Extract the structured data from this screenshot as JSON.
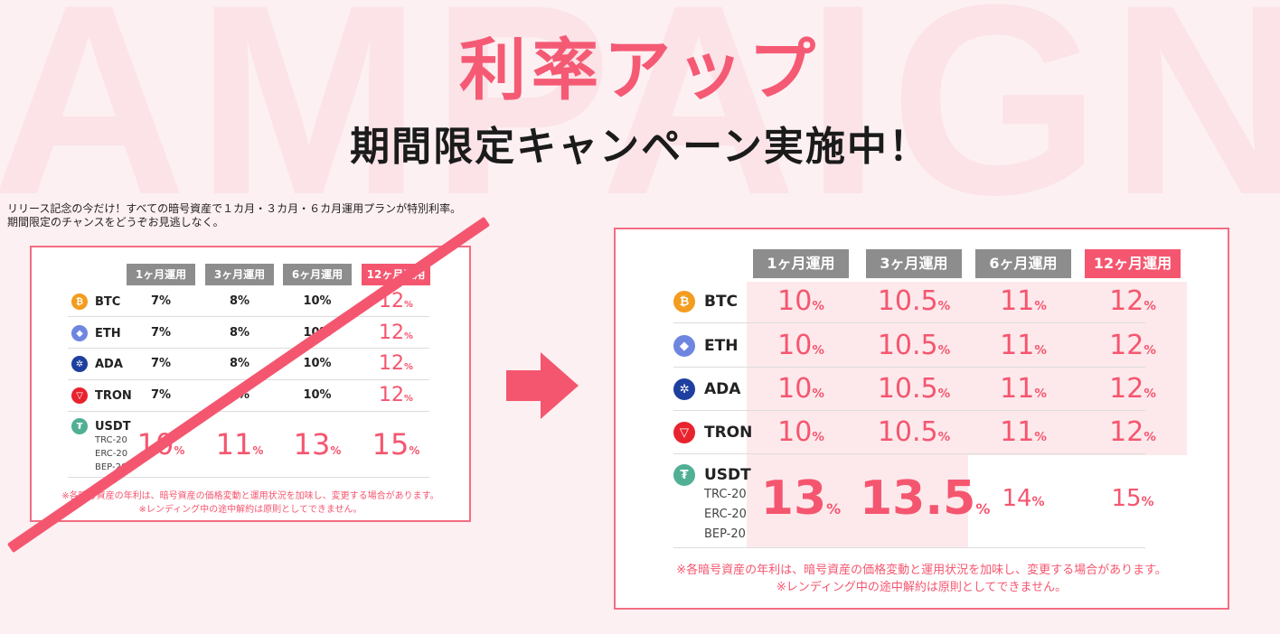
{
  "background_word": "AMPAIGN",
  "hero": {
    "title": "利率アップ",
    "subtitle": "期間限定キャンペーン実施中！"
  },
  "intro": {
    "line1": "リリース記念の今だけ！すべての暗号資産で１カ月・３カ月・６カ月運用プランが特別利率。",
    "line2": "期間限定のチャンスをどうぞお見逃しなく。"
  },
  "plans": [
    "1ヶ月運用",
    "3ヶ月運用",
    "6ヶ月運用",
    "12ヶ月運用"
  ],
  "coins": [
    {
      "name": "BTC",
      "icon": "bitcoin-icon",
      "glyph": "₿",
      "color": "#f39c1f"
    },
    {
      "name": "ETH",
      "icon": "ethereum-icon",
      "glyph": "◆",
      "color": "#6f86e0"
    },
    {
      "name": "ADA",
      "icon": "cardano-icon",
      "glyph": "✲",
      "color": "#1e3fa0"
    },
    {
      "name": "TRON",
      "icon": "tron-icon",
      "glyph": "▽",
      "color": "#e8232e"
    },
    {
      "name": "USDT",
      "icon": "tether-icon",
      "glyph": "₮",
      "color": "#50af95",
      "networks": [
        "TRC-20",
        "ERC-20",
        "BEP-20"
      ]
    }
  ],
  "old_rates": [
    [
      "7%",
      "8%",
      "10%",
      "12"
    ],
    [
      "7%",
      "8%",
      "10%",
      "12"
    ],
    [
      "7%",
      "8%",
      "10%",
      "12"
    ],
    [
      "7%",
      "8%",
      "10%",
      "12"
    ],
    [
      "10",
      "11",
      "13",
      "15"
    ]
  ],
  "new_rates": [
    [
      "10",
      "10.5",
      "11",
      "12"
    ],
    [
      "10",
      "10.5",
      "11",
      "12"
    ],
    [
      "10",
      "10.5",
      "11",
      "12"
    ],
    [
      "10",
      "10.5",
      "11",
      "12"
    ],
    [
      "13",
      "13.5",
      "14",
      "15"
    ]
  ],
  "percent": "%",
  "notes": {
    "line1": "※各暗号資産の年利は、暗号資産の価格変動と運用状況を加味し、変更する場合があります。",
    "line2": "※レンディング中の途中解約は原則としてできません。"
  },
  "colors": {
    "accent": "#f5566f",
    "tag_gray": "#8d8d8d",
    "bg": "#fdf0f2"
  }
}
